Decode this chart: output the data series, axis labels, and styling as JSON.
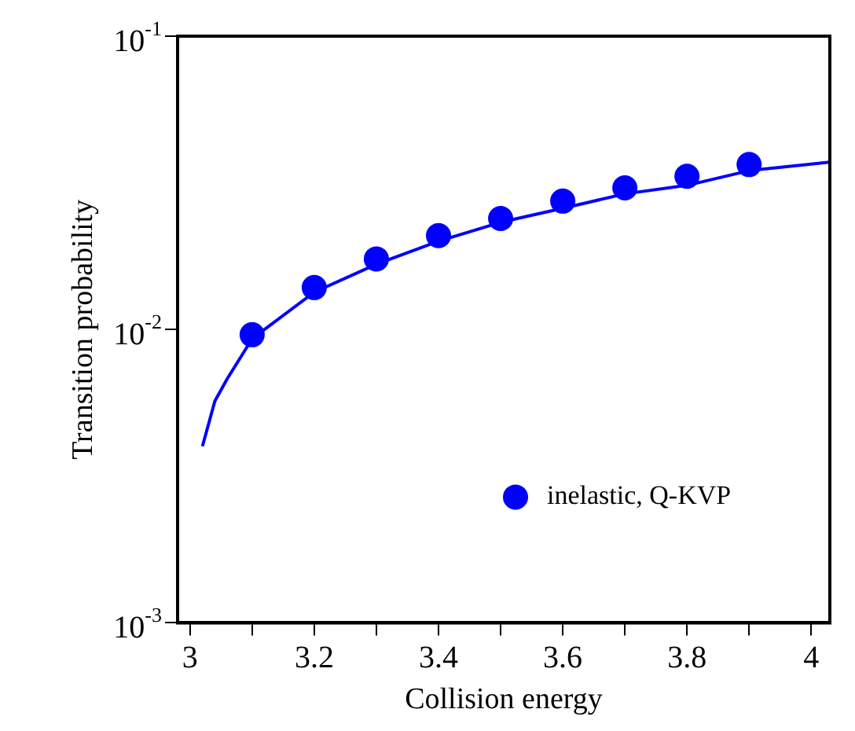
{
  "chart_data": {
    "type": "scatter",
    "xlabel": "Collision energy",
    "ylabel": "Transition probability",
    "log": "y",
    "grid": false,
    "legend": "bottom right",
    "marker": "circle",
    "xlim": [
      2.98,
      4.03
    ],
    "xticks": [
      3,
      {
        "value": 3.1,
        "label": null
      },
      3.2,
      {
        "value": 3.3,
        "label": null
      },
      3.4,
      {
        "value": 3.5,
        "label": null
      },
      3.6,
      {
        "value": 3.7,
        "label": null
      },
      3.8,
      {
        "value": 3.9,
        "label": null
      },
      4
    ],
    "ylim": [
      0.001,
      0.1
    ],
    "yticks": [
      {
        "value": 0.001,
        "label": "10$^{-3}$"
      },
      {
        "value": 0.01,
        "label": "10$^{-2}$"
      },
      {
        "value": 0.1,
        "label": "10$^{-1}$"
      }
    ],
    "series": [
      {
        "type": "line",
        "color": "#0000ff",
        "marker": "none",
        "x": [
          3.02,
          3.04,
          3.06,
          3.1,
          3.2,
          3.3,
          3.4,
          3.5,
          3.6,
          3.7,
          3.8,
          3.9,
          4.03
        ],
        "values": [
          0.004,
          0.0057,
          0.0068,
          0.0093,
          0.0134,
          0.0167,
          0.02,
          0.0232,
          0.0259,
          0.029,
          0.031,
          0.0348,
          0.0372
        ]
      },
      {
        "name": "inelastic, Q-KVP",
        "color": "#0000ff",
        "x": [
          3.1,
          3.2,
          3.3,
          3.4,
          3.5,
          3.6,
          3.7,
          3.8,
          3.9
        ],
        "values": [
          0.0096,
          0.0139,
          0.0174,
          0.0209,
          0.0239,
          0.0274,
          0.0304,
          0.0333,
          0.0365
        ]
      }
    ]
  }
}
